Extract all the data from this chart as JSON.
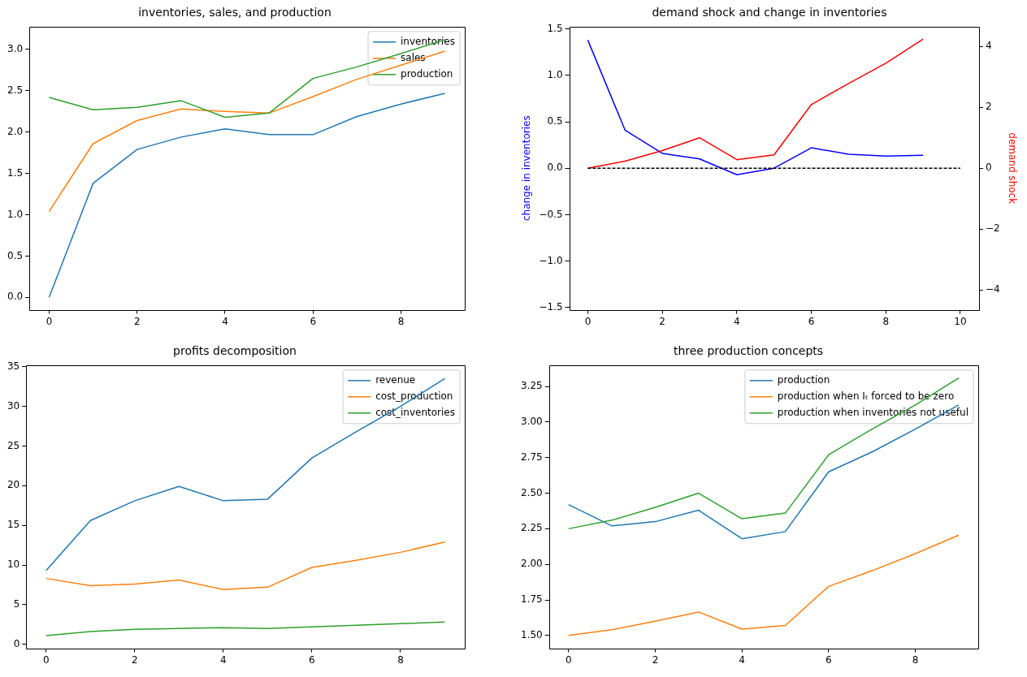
{
  "chart_data": [
    {
      "type": "line",
      "title": "inventories, sales, and production",
      "x": [
        0,
        1,
        2,
        3,
        4,
        5,
        6,
        7,
        8,
        9
      ],
      "xlim": [
        -0.45,
        9.45
      ],
      "xticks": [
        0,
        2,
        4,
        6,
        8
      ],
      "ylim": [
        -0.15,
        3.277
      ],
      "yticks": [
        {
          "value": 0,
          "label": "0.0"
        },
        {
          "value": 0.5,
          "label": "0.5"
        },
        {
          "value": 1,
          "label": "1.0"
        },
        {
          "value": 1.5,
          "label": "1.5"
        },
        {
          "value": 2,
          "label": "2.0"
        },
        {
          "value": 2.5,
          "label": "2.5"
        },
        {
          "value": 3,
          "label": "3.0"
        }
      ],
      "legend": "top right",
      "grid": false,
      "series": [
        {
          "name": "inventories",
          "color": "#1f77b4",
          "values": [
            0,
            1.38,
            1.79,
            1.94,
            2.04,
            1.97,
            1.97,
            2.19,
            2.34,
            2.47
          ]
        },
        {
          "name": "sales",
          "color": "#ff7f0e",
          "values": [
            1.04,
            1.86,
            2.14,
            2.28,
            2.25,
            2.23,
            2.43,
            2.64,
            2.81,
            2.98
          ]
        },
        {
          "name": "production",
          "color": "#2ca02c",
          "values": [
            2.42,
            2.27,
            2.3,
            2.38,
            2.18,
            2.23,
            2.65,
            2.79,
            2.95,
            3.12
          ]
        }
      ]
    },
    {
      "type": "line",
      "title": "demand shock and change in inventories",
      "ylabel": "change in inventories",
      "y2label": "demand shock",
      "x": [
        0,
        1,
        2,
        3,
        4,
        5,
        6,
        7,
        8,
        9
      ],
      "xlim": [
        -0.5,
        10.5
      ],
      "xticks": [
        0,
        2,
        4,
        6,
        8,
        10
      ],
      "ylim": [
        -1.525,
        1.525
      ],
      "yticks": [
        {
          "value": -1.5,
          "label": "−1.5"
        },
        {
          "value": -1,
          "label": "−1.0"
        },
        {
          "value": -0.5,
          "label": "−0.5"
        },
        {
          "value": 0,
          "label": "0.0"
        },
        {
          "value": 0.5,
          "label": "0.5"
        },
        {
          "value": 1,
          "label": "1.0"
        },
        {
          "value": 1.5,
          "label": "1.5"
        }
      ],
      "y2lim": [
        -4.65,
        4.65
      ],
      "y2ticks": [
        {
          "value": -4,
          "label": "−4"
        },
        {
          "value": -2,
          "label": "−2"
        },
        0,
        2,
        4
      ],
      "grid": false,
      "series": [
        {
          "color": "#0000ff",
          "values": [
            1.38,
            0.41,
            0.16,
            0.1,
            -0.07,
            0,
            0.22,
            0.15,
            0.13,
            0.14
          ]
        },
        {
          "color": "#ff0000",
          "axis": "y2",
          "values": [
            0,
            0.23,
            0.58,
            1.0,
            0.28,
            0.44,
            2.09,
            2.78,
            3.45,
            4.24
          ]
        },
        {
          "color": "#000000",
          "line_style": "dashed",
          "x": [
            0,
            10
          ],
          "values": [
            0,
            0
          ]
        }
      ]
    },
    {
      "type": "line",
      "title": "profits decomposition",
      "x": [
        0,
        1,
        2,
        3,
        4,
        5,
        6,
        7,
        8,
        9
      ],
      "xlim": [
        -0.45,
        9.45
      ],
      "xticks": [
        0,
        2,
        4,
        6,
        8
      ],
      "ylim": [
        -0.5,
        35.2
      ],
      "yticks": [
        0,
        5,
        10,
        15,
        20,
        25,
        30,
        35
      ],
      "legend": "top right",
      "grid": false,
      "series": [
        {
          "name": "revenue",
          "color": "#1f77b4",
          "values": [
            9.3,
            15.6,
            18.1,
            19.9,
            18.1,
            18.3,
            23.5,
            26.8,
            30.0,
            33.5
          ]
        },
        {
          "name": "cost_production",
          "color": "#ff7f0e",
          "values": [
            8.3,
            7.4,
            7.6,
            8.1,
            6.9,
            7.2,
            9.7,
            10.6,
            11.6,
            12.9
          ]
        },
        {
          "name": "cost_inventories",
          "color": "#2ca02c",
          "values": [
            1.1,
            1.6,
            1.9,
            2.0,
            2.1,
            2.0,
            2.2,
            2.4,
            2.6,
            2.8
          ]
        }
      ]
    },
    {
      "type": "line",
      "title": "three production concepts",
      "x": [
        0,
        1,
        2,
        3,
        4,
        5,
        6,
        7,
        8,
        9
      ],
      "xlim": [
        -0.45,
        9.45
      ],
      "xticks": [
        0,
        2,
        4,
        6,
        8
      ],
      "ylim": [
        1.41,
        3.4
      ],
      "yticks": [
        {
          "value": 1.5,
          "label": "1.50"
        },
        {
          "value": 1.75,
          "label": "1.75"
        },
        {
          "value": 2,
          "label": "2.00"
        },
        {
          "value": 2.25,
          "label": "2.25"
        },
        {
          "value": 2.5,
          "label": "2.50"
        },
        {
          "value": 2.75,
          "label": "2.75"
        },
        {
          "value": 3,
          "label": "3.00"
        },
        {
          "value": 3.25,
          "label": "3.25"
        }
      ],
      "legend": "top right",
      "grid": false,
      "series": [
        {
          "name": "production",
          "color": "#1f77b4",
          "values": [
            2.42,
            2.27,
            2.3,
            2.38,
            2.18,
            2.23,
            2.65,
            2.79,
            2.95,
            3.12
          ]
        },
        {
          "name": "production when Iₜ forced to be zero",
          "color": "#ff7f0e",
          "values": [
            1.5,
            1.54,
            1.6,
            1.665,
            1.545,
            1.57,
            1.845,
            1.955,
            2.075,
            2.205
          ]
        },
        {
          "name": "production when inventories not useful",
          "color": "#2ca02c",
          "values": [
            2.25,
            2.31,
            2.4,
            2.5,
            2.32,
            2.36,
            2.77,
            2.95,
            3.12,
            3.31
          ]
        }
      ]
    }
  ]
}
